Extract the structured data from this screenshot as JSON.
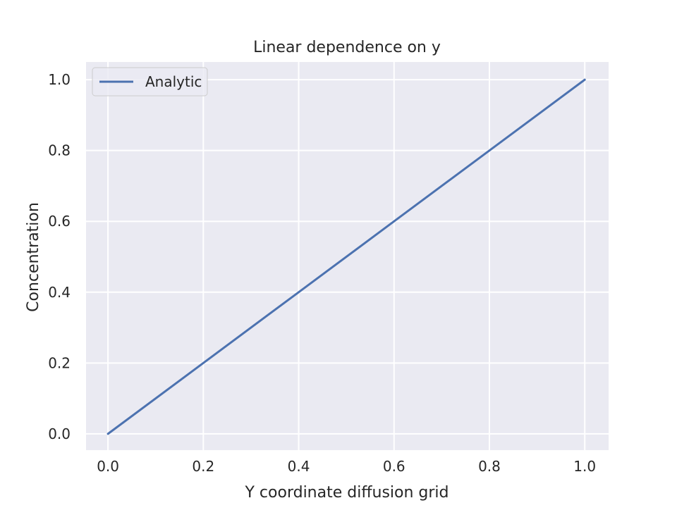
{
  "chart_data": {
    "type": "line",
    "title": "Linear dependence on y",
    "xlabel": "Y coordinate diffusion grid",
    "ylabel": "Concentration",
    "xlim": [
      -0.046,
      1.05
    ],
    "ylim": [
      -0.046,
      1.05
    ],
    "xticks": [
      0.0,
      0.2,
      0.4,
      0.6,
      0.8,
      1.0
    ],
    "yticks": [
      0.0,
      0.2,
      0.4,
      0.6,
      0.8,
      1.0
    ],
    "xtick_labels": [
      "0.0",
      "0.2",
      "0.4",
      "0.6",
      "0.8",
      "1.0"
    ],
    "ytick_labels": [
      "0.0",
      "0.2",
      "0.4",
      "0.6",
      "0.8",
      "1.0"
    ],
    "grid": true,
    "legend_position": "top-left",
    "series": [
      {
        "name": "Analytic",
        "color": "#4c72b0",
        "x": [
          0.0,
          0.2,
          0.4,
          0.6,
          0.8,
          1.0
        ],
        "y": [
          0.0,
          0.2,
          0.4,
          0.6,
          0.8,
          1.0
        ]
      }
    ],
    "colors": {
      "plot_background": "#eaeaf2",
      "grid": "#ffffff",
      "text": "#262626"
    }
  }
}
